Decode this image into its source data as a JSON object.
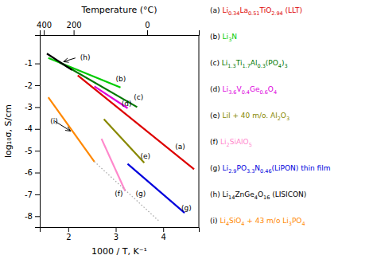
{
  "chart_data": {
    "type": "line",
    "xlabel": "1000 / T, K⁻¹",
    "ylabel": "log₁₀σ, S/cm",
    "x2label": "Temperature (°C)",
    "xlim": [
      1.4,
      4.75
    ],
    "ylim": [
      -8.5,
      0.3
    ],
    "xticks": [
      2,
      3,
      4
    ],
    "yticks": [
      -1,
      -2,
      -3,
      -4,
      -5,
      -6,
      -7,
      -8
    ],
    "x2lim": [
      1.4,
      4.75
    ],
    "x2ticks": [
      {
        "value": 1.485553,
        "label": "400"
      },
      {
        "value": 2.113495,
        "label": "200"
      },
      {
        "value": 3.660992,
        "label": "0"
      }
    ],
    "grid": false,
    "series": [
      {
        "name": "(a) Li0.34La0.51TiO2.94 (LLT)",
        "color": "#dd0000",
        "x": [
          2.2,
          4.65
        ],
        "values": [
          -1.55,
          -5.85
        ]
      },
      {
        "name": "(b) Li3N",
        "color": "#00cc00",
        "x": [
          1.58,
          3.1
        ],
        "values": [
          -0.75,
          -2.1
        ]
      },
      {
        "name": "(c) Li1.3Ti1.7Al0.3(PO4)3",
        "color": "#007700",
        "x": [
          1.82,
          3.45
        ],
        "values": [
          -0.95,
          -3.0
        ]
      },
      {
        "name": "(d) Li3.6V0.4Ge0.6O4",
        "color": "#dd00dd",
        "x": [
          2.55,
          3.25
        ],
        "values": [
          -2.05,
          -3.05
        ]
      },
      {
        "name": "(e) LiI + 40 m/o. Al2O3",
        "color": "#888800",
        "x": [
          2.75,
          3.6
        ],
        "values": [
          -3.55,
          -5.55
        ]
      },
      {
        "name": "(f) Li2SiAlO5",
        "color": "#ff88cc",
        "x": [
          2.7,
          3.2
        ],
        "values": [
          -4.45,
          -6.85
        ]
      },
      {
        "name": "(g) Li2.9PO3.3N0.46(LiPON) thin film",
        "color": "#0000dd",
        "x": [
          3.25,
          4.45
        ],
        "values": [
          -5.6,
          -7.85
        ]
      },
      {
        "name": "(h) Li14ZnGe4O16 (LISICON)",
        "color": "#000000",
        "x": [
          1.55,
          2.08
        ],
        "values": [
          -0.55,
          -1.3
        ]
      },
      {
        "name": "(i) Li4SiO4 + 43 m/o Li3PO4",
        "color": "#ff8800",
        "x": [
          1.58,
          2.55
        ],
        "values": [
          -2.55,
          -5.5
        ]
      },
      {
        "color": "#aaaaaa",
        "line_style": "dotted",
        "x": [
          2.55,
          3.9
        ],
        "values": [
          -5.5,
          -8.2
        ]
      }
    ],
    "annotations": [
      {
        "text": "(h)",
        "x": 2.25,
        "y": -0.72
      },
      {
        "text": "(b)",
        "x": 3.0,
        "y": -1.72
      },
      {
        "text": "(c)",
        "x": 3.38,
        "y": -2.55
      },
      {
        "text": "(d)",
        "x": 3.12,
        "y": -2.82
      },
      {
        "text": "(e)",
        "x": 3.52,
        "y": -5.25
      },
      {
        "text": "(f)",
        "x": 2.98,
        "y": -6.95
      },
      {
        "text": "(g)",
        "x": 3.42,
        "y": -6.95
      },
      {
        "text": "(g)",
        "x": 4.38,
        "y": -7.62
      },
      {
        "text": "(a)",
        "x": 4.25,
        "y": -4.82
      },
      {
        "text": "(i)",
        "x": 1.62,
        "y": -3.65
      }
    ],
    "arrows": [
      {
        "x1": 2.15,
        "y1": -0.75,
        "x2": 1.9,
        "y2": -0.92
      },
      {
        "x1": 1.72,
        "y1": -3.65,
        "x2": 2.05,
        "y2": -4.1
      }
    ]
  }
}
